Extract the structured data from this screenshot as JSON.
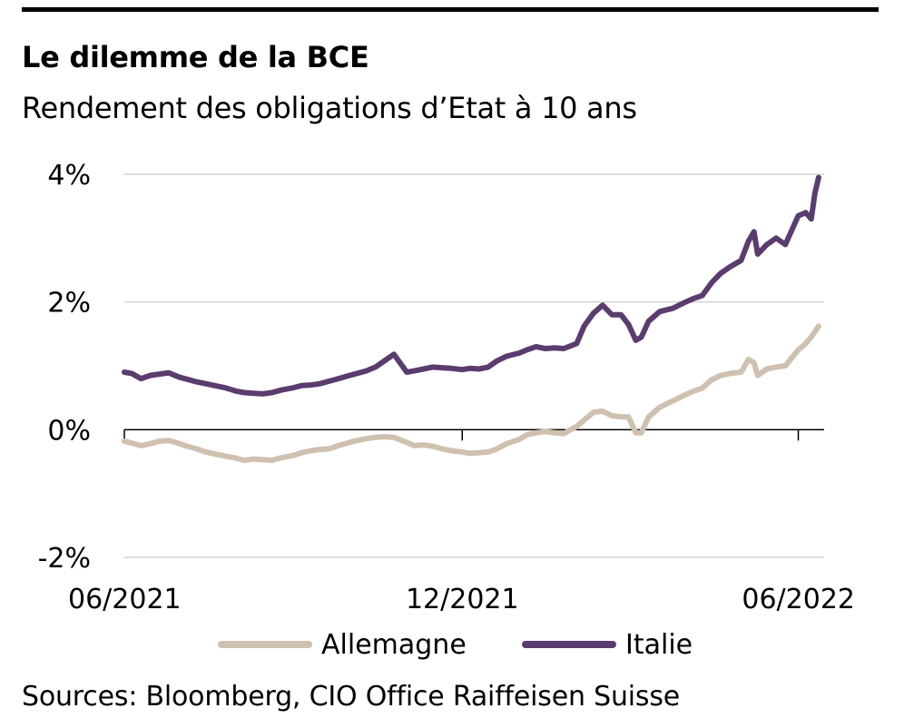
{
  "title": "Le dilemme de la BCE",
  "subtitle": "Rendement des obligations d’Etat à 10 ans",
  "source": "Sources: Bloomberg, CIO Office Raiffeisen Suisse",
  "chart_data": {
    "type": "line",
    "title": "Le dilemme de la BCE",
    "subtitle": "Rendement des obligations d’Etat à 10 ans",
    "x_ticks": [
      {
        "label": "06/2021",
        "value": "2021-06-01"
      },
      {
        "label": "12/2021",
        "value": "2021-12-01"
      },
      {
        "label": "06/2022",
        "value": "2022-06-01"
      }
    ],
    "xlim": [
      "2021-06-01",
      "2022-06-15"
    ],
    "y_ticks": [
      {
        "label": "4%",
        "value": 4
      },
      {
        "label": "2%",
        "value": 2
      },
      {
        "label": "0%",
        "value": 0
      },
      {
        "label": "-2%",
        "value": -2
      }
    ],
    "ylim": [
      -2,
      4
    ],
    "grid": "horizontal",
    "legend": "bottom",
    "series": [
      {
        "name": "Allemagne",
        "color": "#cfc0b0",
        "points": [
          [
            "2021-06-01",
            -0.18
          ],
          [
            "2021-06-05",
            -0.21
          ],
          [
            "2021-06-10",
            -0.25
          ],
          [
            "2021-06-15",
            -0.22
          ],
          [
            "2021-06-20",
            -0.18
          ],
          [
            "2021-06-25",
            -0.17
          ],
          [
            "2021-07-01",
            -0.22
          ],
          [
            "2021-07-05",
            -0.26
          ],
          [
            "2021-07-10",
            -0.3
          ],
          [
            "2021-07-15",
            -0.35
          ],
          [
            "2021-07-20",
            -0.38
          ],
          [
            "2021-07-25",
            -0.41
          ],
          [
            "2021-08-01",
            -0.45
          ],
          [
            "2021-08-05",
            -0.48
          ],
          [
            "2021-08-10",
            -0.46
          ],
          [
            "2021-08-15",
            -0.47
          ],
          [
            "2021-08-20",
            -0.48
          ],
          [
            "2021-08-25",
            -0.44
          ],
          [
            "2021-09-01",
            -0.4
          ],
          [
            "2021-09-05",
            -0.36
          ],
          [
            "2021-09-10",
            -0.33
          ],
          [
            "2021-09-15",
            -0.31
          ],
          [
            "2021-09-20",
            -0.3
          ],
          [
            "2021-09-25",
            -0.25
          ],
          [
            "2021-10-01",
            -0.2
          ],
          [
            "2021-10-05",
            -0.17
          ],
          [
            "2021-10-10",
            -0.14
          ],
          [
            "2021-10-15",
            -0.12
          ],
          [
            "2021-10-20",
            -0.11
          ],
          [
            "2021-10-25",
            -0.12
          ],
          [
            "2021-11-01",
            -0.2
          ],
          [
            "2021-11-05",
            -0.25
          ],
          [
            "2021-11-10",
            -0.24
          ],
          [
            "2021-11-15",
            -0.26
          ],
          [
            "2021-11-20",
            -0.3
          ],
          [
            "2021-11-25",
            -0.33
          ],
          [
            "2021-12-01",
            -0.35
          ],
          [
            "2021-12-05",
            -0.37
          ],
          [
            "2021-12-10",
            -0.36
          ],
          [
            "2021-12-15",
            -0.35
          ],
          [
            "2021-12-20",
            -0.3
          ],
          [
            "2021-12-25",
            -0.22
          ],
          [
            "2022-01-01",
            -0.15
          ],
          [
            "2022-01-05",
            -0.08
          ],
          [
            "2022-01-10",
            -0.05
          ],
          [
            "2022-01-15",
            -0.03
          ],
          [
            "2022-01-20",
            -0.05
          ],
          [
            "2022-01-25",
            -0.06
          ],
          [
            "2022-02-01",
            0.05
          ],
          [
            "2022-02-05",
            0.15
          ],
          [
            "2022-02-10",
            0.27
          ],
          [
            "2022-02-15",
            0.29
          ],
          [
            "2022-02-20",
            0.22
          ],
          [
            "2022-02-25",
            0.2
          ],
          [
            "2022-03-01",
            0.2
          ],
          [
            "2022-03-05",
            -0.05
          ],
          [
            "2022-03-08",
            -0.05
          ],
          [
            "2022-03-12",
            0.2
          ],
          [
            "2022-03-18",
            0.35
          ],
          [
            "2022-03-25",
            0.45
          ],
          [
            "2022-04-01",
            0.55
          ],
          [
            "2022-04-05",
            0.6
          ],
          [
            "2022-04-10",
            0.65
          ],
          [
            "2022-04-15",
            0.78
          ],
          [
            "2022-04-20",
            0.85
          ],
          [
            "2022-04-25",
            0.88
          ],
          [
            "2022-05-01",
            0.9
          ],
          [
            "2022-05-05",
            1.1
          ],
          [
            "2022-05-08",
            1.05
          ],
          [
            "2022-05-10",
            0.85
          ],
          [
            "2022-05-15",
            0.95
          ],
          [
            "2022-05-20",
            0.98
          ],
          [
            "2022-05-25",
            1.0
          ],
          [
            "2022-06-01",
            1.25
          ],
          [
            "2022-06-05",
            1.35
          ],
          [
            "2022-06-08",
            1.45
          ],
          [
            "2022-06-12",
            1.62
          ]
        ]
      },
      {
        "name": "Italie",
        "color": "#5a3c6e",
        "points": [
          [
            "2021-06-01",
            0.9
          ],
          [
            "2021-06-05",
            0.88
          ],
          [
            "2021-06-10",
            0.8
          ],
          [
            "2021-06-15",
            0.85
          ],
          [
            "2021-06-20",
            0.87
          ],
          [
            "2021-06-25",
            0.89
          ],
          [
            "2021-07-01",
            0.82
          ],
          [
            "2021-07-05",
            0.79
          ],
          [
            "2021-07-10",
            0.75
          ],
          [
            "2021-07-15",
            0.72
          ],
          [
            "2021-07-20",
            0.69
          ],
          [
            "2021-07-25",
            0.66
          ],
          [
            "2021-08-01",
            0.6
          ],
          [
            "2021-08-05",
            0.58
          ],
          [
            "2021-08-10",
            0.57
          ],
          [
            "2021-08-15",
            0.56
          ],
          [
            "2021-08-20",
            0.58
          ],
          [
            "2021-08-25",
            0.62
          ],
          [
            "2021-09-01",
            0.66
          ],
          [
            "2021-09-05",
            0.69
          ],
          [
            "2021-09-10",
            0.7
          ],
          [
            "2021-09-15",
            0.72
          ],
          [
            "2021-09-20",
            0.76
          ],
          [
            "2021-09-25",
            0.8
          ],
          [
            "2021-10-01",
            0.85
          ],
          [
            "2021-10-05",
            0.88
          ],
          [
            "2021-10-10",
            0.92
          ],
          [
            "2021-10-15",
            0.98
          ],
          [
            "2021-10-20",
            1.08
          ],
          [
            "2021-10-25",
            1.18
          ],
          [
            "2021-11-01",
            0.9
          ],
          [
            "2021-11-05",
            0.92
          ],
          [
            "2021-11-10",
            0.95
          ],
          [
            "2021-11-15",
            0.98
          ],
          [
            "2021-11-20",
            0.97
          ],
          [
            "2021-11-25",
            0.96
          ],
          [
            "2021-12-01",
            0.94
          ],
          [
            "2021-12-05",
            0.96
          ],
          [
            "2021-12-10",
            0.95
          ],
          [
            "2021-12-15",
            0.98
          ],
          [
            "2021-12-20",
            1.08
          ],
          [
            "2021-12-25",
            1.15
          ],
          [
            "2022-01-01",
            1.2
          ],
          [
            "2022-01-05",
            1.25
          ],
          [
            "2022-01-10",
            1.3
          ],
          [
            "2022-01-15",
            1.27
          ],
          [
            "2022-01-20",
            1.28
          ],
          [
            "2022-01-25",
            1.27
          ],
          [
            "2022-02-01",
            1.35
          ],
          [
            "2022-02-05",
            1.62
          ],
          [
            "2022-02-10",
            1.82
          ],
          [
            "2022-02-15",
            1.95
          ],
          [
            "2022-02-20",
            1.8
          ],
          [
            "2022-02-25",
            1.8
          ],
          [
            "2022-03-01",
            1.65
          ],
          [
            "2022-03-05",
            1.4
          ],
          [
            "2022-03-08",
            1.45
          ],
          [
            "2022-03-12",
            1.7
          ],
          [
            "2022-03-18",
            1.85
          ],
          [
            "2022-03-25",
            1.9
          ],
          [
            "2022-04-01",
            2.0
          ],
          [
            "2022-04-05",
            2.05
          ],
          [
            "2022-04-10",
            2.1
          ],
          [
            "2022-04-15",
            2.3
          ],
          [
            "2022-04-20",
            2.45
          ],
          [
            "2022-04-25",
            2.55
          ],
          [
            "2022-05-01",
            2.65
          ],
          [
            "2022-05-05",
            2.95
          ],
          [
            "2022-05-08",
            3.1
          ],
          [
            "2022-05-10",
            2.75
          ],
          [
            "2022-05-15",
            2.9
          ],
          [
            "2022-05-20",
            3.0
          ],
          [
            "2022-05-25",
            2.9
          ],
          [
            "2022-06-01",
            3.35
          ],
          [
            "2022-06-05",
            3.4
          ],
          [
            "2022-06-08",
            3.3
          ],
          [
            "2022-06-10",
            3.7
          ],
          [
            "2022-06-12",
            3.95
          ]
        ]
      }
    ]
  }
}
